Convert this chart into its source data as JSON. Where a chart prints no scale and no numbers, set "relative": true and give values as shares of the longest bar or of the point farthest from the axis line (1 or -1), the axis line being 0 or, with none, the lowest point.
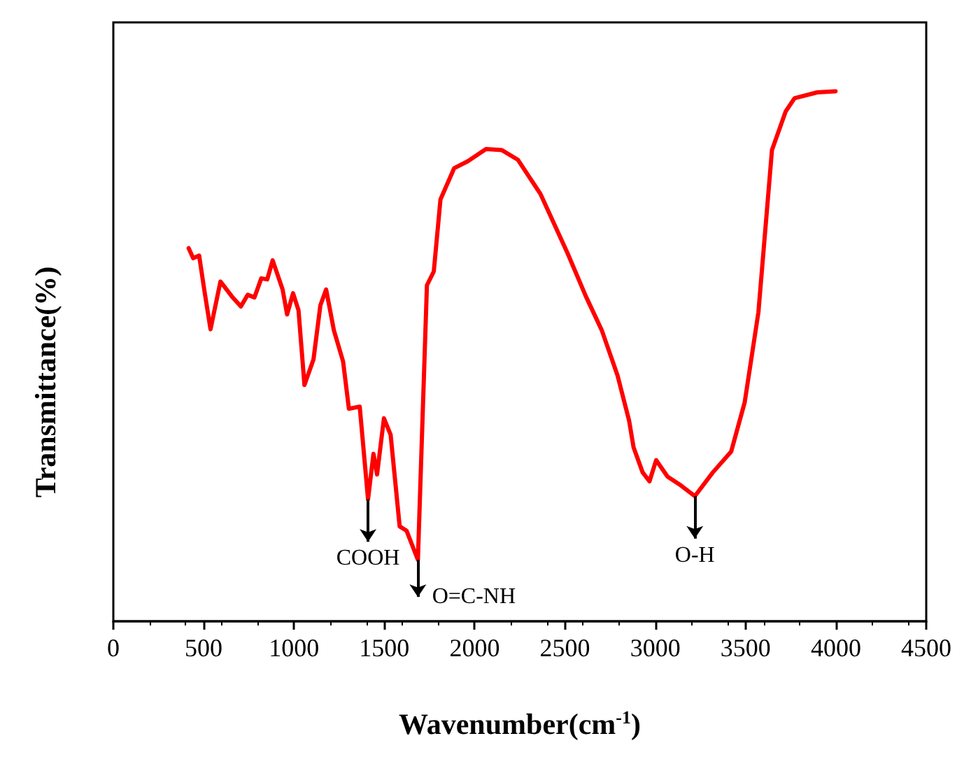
{
  "chart_data": {
    "type": "line",
    "relative": true,
    "xlabel": "Wavenumber(cm$^{-1}$)",
    "ylabel": "Transmittance(%)",
    "xlim": [
      0,
      4500
    ],
    "xticks": [
      0,
      500,
      1000,
      1500,
      2000,
      2500,
      3000,
      3500,
      4000,
      4500
    ],
    "grid": false,
    "marker": "none",
    "line_style": "solid",
    "series": [
      {
        "color": "#ff0000",
        "x": [
          417,
          442,
          475,
          505,
          538,
          593,
          656,
          706,
          744,
          781,
          819,
          852,
          882,
          937,
          962,
          995,
          1025,
          1058,
          1108,
          1146,
          1178,
          1221,
          1272,
          1304,
          1364,
          1410,
          1440,
          1460,
          1498,
          1535,
          1585,
          1623,
          1686,
          1736,
          1774,
          1811,
          1887,
          1962,
          2063,
          2151,
          2239,
          2365,
          2515,
          2616,
          2704,
          2791,
          2855,
          2880,
          2930,
          2968,
          3005,
          3068,
          3143,
          3219,
          3319,
          3420,
          3495,
          3571,
          3646,
          3722,
          3771,
          3897,
          3998
        ],
        "values": [
          0.704,
          0.685,
          0.69,
          0.622,
          0.551,
          0.641,
          0.613,
          0.594,
          0.616,
          0.611,
          0.647,
          0.645,
          0.681,
          0.626,
          0.579,
          0.619,
          0.587,
          0.446,
          0.494,
          0.596,
          0.626,
          0.549,
          0.49,
          0.401,
          0.405,
          0.23,
          0.316,
          0.277,
          0.383,
          0.352,
          0.179,
          0.171,
          0.116,
          0.634,
          0.66,
          0.796,
          0.855,
          0.868,
          0.891,
          0.889,
          0.871,
          0.806,
          0.694,
          0.613,
          0.549,
          0.464,
          0.379,
          0.328,
          0.281,
          0.264,
          0.304,
          0.273,
          0.256,
          0.236,
          0.281,
          0.32,
          0.413,
          0.583,
          0.889,
          0.962,
          0.987,
          0.998,
          1.0
        ]
      }
    ],
    "annotations": [
      {
        "text": "COOH",
        "x": 1410,
        "y": 0.23
      },
      {
        "text": "O=C-NH",
        "x": 1686,
        "y": 0.116
      },
      {
        "text": "O-H",
        "x": 3219,
        "y": 0.236
      }
    ]
  }
}
